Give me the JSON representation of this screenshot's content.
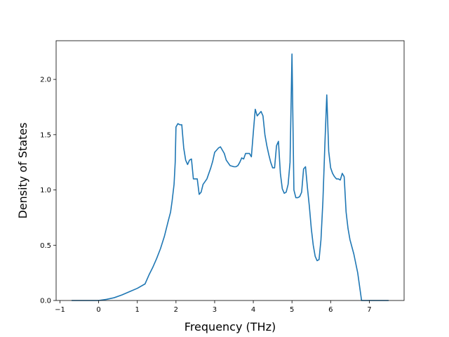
{
  "chart_data": {
    "type": "line",
    "title": "",
    "xlabel": "Frequency (THz)",
    "ylabel": "Density of States",
    "xlim": [
      -1.1,
      7.9
    ],
    "ylim": [
      0.0,
      2.35
    ],
    "xticks": [
      -1,
      0,
      1,
      2,
      3,
      4,
      5,
      6,
      7
    ],
    "yticks": [
      0.0,
      0.5,
      1.0,
      1.5,
      2.0
    ],
    "xtick_labels": [
      "−1",
      "0",
      "1",
      "2",
      "3",
      "4",
      "5",
      "6",
      "7"
    ],
    "ytick_labels": [
      "0.0",
      "0.5",
      "1.0",
      "1.5",
      "2.0"
    ],
    "grid": false,
    "legend": "none",
    "series": [
      {
        "color": "#1f77b4",
        "x": [
          -0.7,
          -0.3,
          0.0,
          0.2,
          0.4,
          0.6,
          0.8,
          1.0,
          1.2,
          1.3,
          1.4,
          1.5,
          1.6,
          1.7,
          1.8,
          1.86,
          1.9,
          1.95,
          1.98,
          2.0,
          2.05,
          2.1,
          2.15,
          2.2,
          2.25,
          2.3,
          2.35,
          2.4,
          2.45,
          2.5,
          2.55,
          2.6,
          2.65,
          2.7,
          2.8,
          2.9,
          2.95,
          3.0,
          3.05,
          3.1,
          3.15,
          3.2,
          3.25,
          3.3,
          3.4,
          3.5,
          3.55,
          3.6,
          3.65,
          3.7,
          3.75,
          3.8,
          3.85,
          3.9,
          3.95,
          4.0,
          4.05,
          4.1,
          4.15,
          4.2,
          4.25,
          4.3,
          4.35,
          4.4,
          4.45,
          4.5,
          4.55,
          4.6,
          4.65,
          4.7,
          4.75,
          4.8,
          4.85,
          4.9,
          4.95,
          5.0,
          5.05,
          5.1,
          5.15,
          5.2,
          5.25,
          5.3,
          5.35,
          5.4,
          5.45,
          5.5,
          5.55,
          5.6,
          5.65,
          5.7,
          5.75,
          5.8,
          5.85,
          5.9,
          5.95,
          6.0,
          6.05,
          6.1,
          6.15,
          6.2,
          6.25,
          6.3,
          6.35,
          6.4,
          6.45,
          6.5,
          6.6,
          6.7,
          6.8,
          6.85,
          7.0,
          7.2,
          7.5
        ],
        "values": [
          0.0,
          0.0,
          0.0,
          0.01,
          0.025,
          0.05,
          0.08,
          0.11,
          0.15,
          0.23,
          0.3,
          0.38,
          0.47,
          0.58,
          0.72,
          0.8,
          0.9,
          1.05,
          1.25,
          1.57,
          1.6,
          1.59,
          1.59,
          1.38,
          1.27,
          1.23,
          1.27,
          1.28,
          1.1,
          1.1,
          1.1,
          0.96,
          0.98,
          1.05,
          1.1,
          1.2,
          1.26,
          1.34,
          1.36,
          1.38,
          1.39,
          1.36,
          1.33,
          1.27,
          1.22,
          1.21,
          1.21,
          1.22,
          1.25,
          1.29,
          1.28,
          1.33,
          1.33,
          1.33,
          1.3,
          1.52,
          1.73,
          1.67,
          1.69,
          1.71,
          1.67,
          1.5,
          1.4,
          1.32,
          1.25,
          1.2,
          1.2,
          1.4,
          1.44,
          1.15,
          1.01,
          0.97,
          0.98,
          1.05,
          1.25,
          2.23,
          1.0,
          0.93,
          0.93,
          0.94,
          0.98,
          1.19,
          1.21,
          1.02,
          0.85,
          0.65,
          0.5,
          0.4,
          0.36,
          0.37,
          0.55,
          0.9,
          1.4,
          1.86,
          1.35,
          1.2,
          1.15,
          1.12,
          1.1,
          1.1,
          1.09,
          1.15,
          1.12,
          0.8,
          0.65,
          0.55,
          0.42,
          0.25,
          0.0,
          0.0,
          0.0,
          0.0,
          0.0
        ]
      }
    ]
  }
}
